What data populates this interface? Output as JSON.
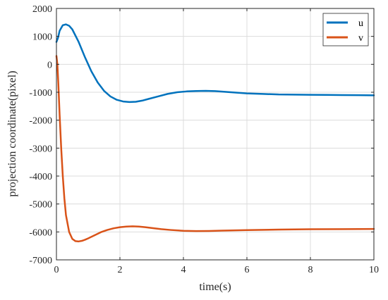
{
  "chart_data": {
    "type": "line",
    "xlabel": "time(s)",
    "ylabel": "projection coordinate(pixel)",
    "xlim": [
      0,
      10
    ],
    "ylim": [
      -7000,
      2000
    ],
    "xticks": [
      0,
      2,
      4,
      6,
      8,
      10
    ],
    "yticks": [
      2000,
      1000,
      0,
      -1000,
      -2000,
      -3000,
      -4000,
      -5000,
      -6000,
      -7000
    ],
    "grid": true,
    "legend_position": "top-right",
    "series": [
      {
        "name": "u",
        "color": "#0072BD",
        "x": [
          0,
          0.05,
          0.1,
          0.2,
          0.3,
          0.4,
          0.5,
          0.7,
          0.9,
          1.1,
          1.3,
          1.5,
          1.7,
          1.9,
          2.1,
          2.3,
          2.5,
          2.7,
          2.9,
          3.2,
          3.5,
          3.8,
          4.1,
          4.4,
          4.7,
          5.0,
          5.5,
          6.0,
          6.5,
          7.0,
          7.5,
          8.0,
          8.5,
          9.0,
          9.5,
          10.0
        ],
        "y": [
          800,
          950,
          1200,
          1400,
          1430,
          1380,
          1250,
          800,
          250,
          -250,
          -650,
          -950,
          -1150,
          -1270,
          -1330,
          -1350,
          -1340,
          -1300,
          -1240,
          -1150,
          -1060,
          -1000,
          -970,
          -955,
          -950,
          -960,
          -1000,
          -1040,
          -1060,
          -1080,
          -1085,
          -1090,
          -1095,
          -1100,
          -1105,
          -1110
        ]
      },
      {
        "name": "v",
        "color": "#D95319",
        "x": [
          0,
          0.03,
          0.06,
          0.1,
          0.15,
          0.2,
          0.25,
          0.3,
          0.4,
          0.5,
          0.6,
          0.7,
          0.8,
          0.9,
          1.0,
          1.2,
          1.4,
          1.6,
          1.8,
          2.0,
          2.2,
          2.4,
          2.6,
          2.8,
          3.0,
          3.3,
          3.6,
          4.0,
          4.4,
          4.8,
          5.2,
          5.6,
          6.0,
          7.0,
          8.0,
          9.0,
          10.0
        ],
        "y": [
          300,
          0,
          -700,
          -1800,
          -3000,
          -4000,
          -4800,
          -5400,
          -6000,
          -6250,
          -6330,
          -6340,
          -6320,
          -6280,
          -6230,
          -6120,
          -6010,
          -5930,
          -5870,
          -5830,
          -5810,
          -5800,
          -5810,
          -5830,
          -5860,
          -5900,
          -5930,
          -5960,
          -5970,
          -5965,
          -5955,
          -5945,
          -5935,
          -5915,
          -5905,
          -5900,
          -5895
        ]
      }
    ]
  }
}
